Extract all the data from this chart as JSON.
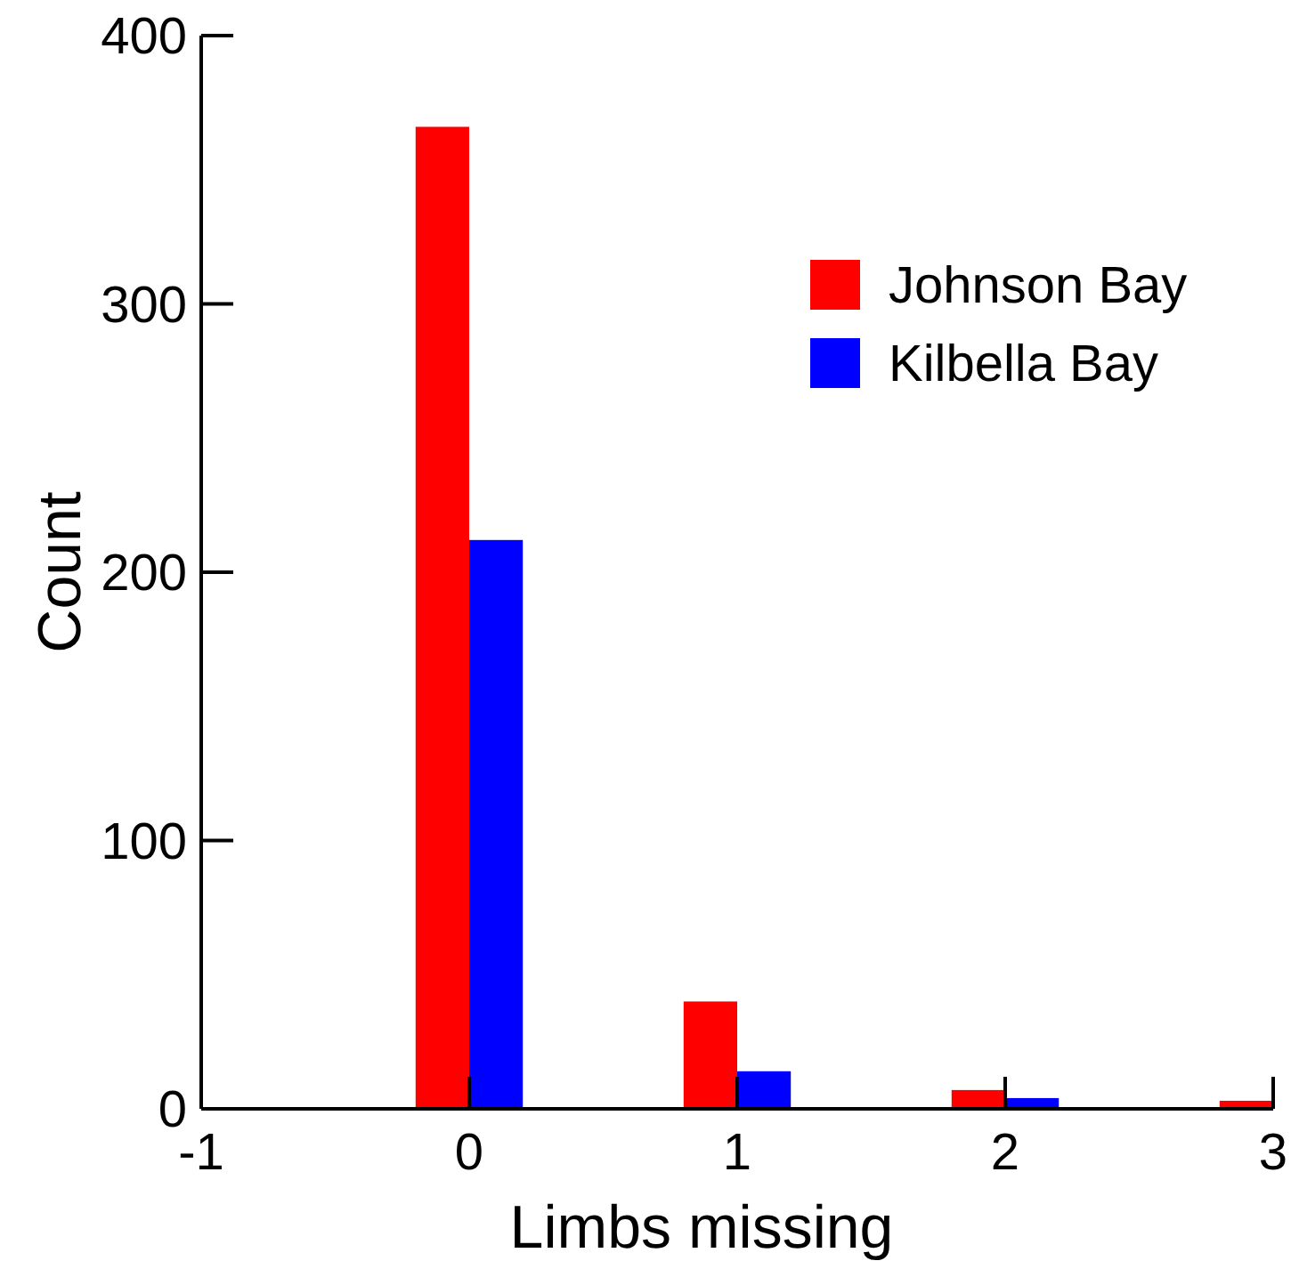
{
  "chart_data": {
    "type": "bar",
    "xlabel": "Limbs missing",
    "ylabel": "Count",
    "x": [
      0,
      1,
      2,
      3
    ],
    "series": [
      {
        "name": "Johnson Bay",
        "color": "#ff0000",
        "values": [
          366,
          40,
          7,
          3
        ]
      },
      {
        "name": "Kilbella Bay",
        "color": "#0000ff",
        "values": [
          212,
          14,
          4,
          0
        ]
      }
    ],
    "xlim": [
      -1,
      3
    ],
    "xticks": [
      -1,
      0,
      1,
      2,
      3
    ],
    "ylim": [
      0,
      400
    ],
    "yticks": [
      0,
      100,
      200,
      300,
      400
    ],
    "grid": false,
    "legend": "top right"
  }
}
